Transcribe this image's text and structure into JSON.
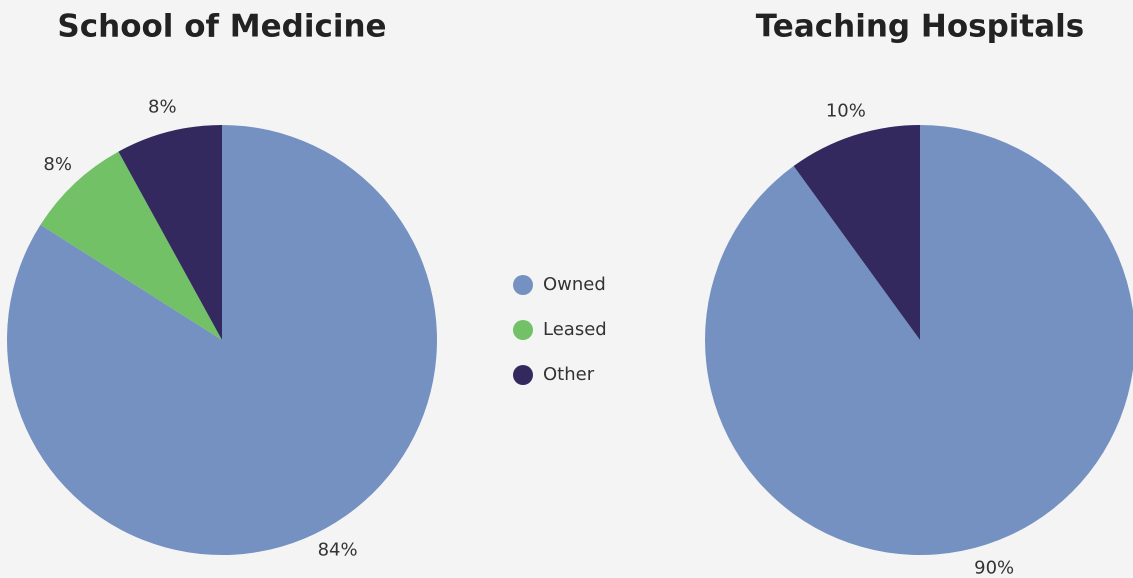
{
  "chart_data": [
    {
      "type": "pie",
      "title": "School of Medicine",
      "categories": [
        "Owned",
        "Leased",
        "Other"
      ],
      "values": [
        84,
        8,
        8
      ],
      "value_labels": [
        "84%",
        "8%",
        "8%"
      ],
      "colors": [
        "#7491c1",
        "#72c167",
        "#33295e"
      ],
      "legend": "center"
    },
    {
      "type": "pie",
      "title": "Teaching Hospitals",
      "categories": [
        "Owned",
        "Other"
      ],
      "values": [
        90,
        10
      ],
      "value_labels": [
        "90%",
        "10%"
      ],
      "colors": [
        "#7491c1",
        "#33295e"
      ]
    }
  ]
}
